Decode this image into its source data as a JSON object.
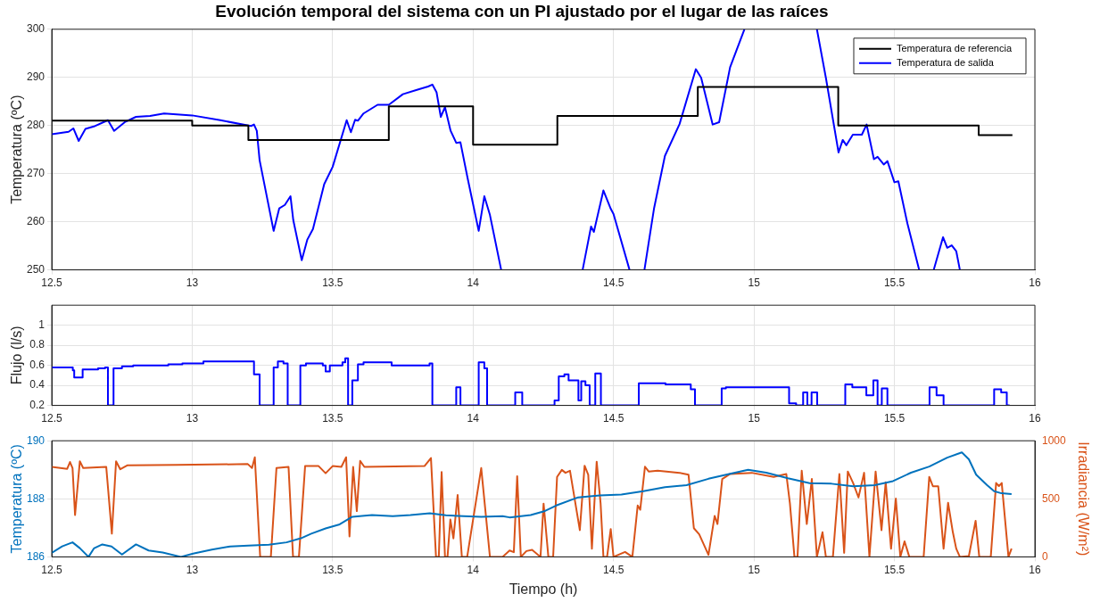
{
  "chart_data": [
    {
      "type": "line",
      "title": "Evolución temporal del sistema con un PI ajustado por el lugar de las raíces",
      "ylabel": "Temperatura (ºC)",
      "xlim": [
        12.5,
        16
      ],
      "xticks": [
        12.5,
        13,
        13.5,
        14,
        14.5,
        15,
        15.5,
        16
      ],
      "ylim": [
        250,
        300
      ],
      "yticks": [
        250,
        260,
        270,
        280,
        290,
        300
      ],
      "grid": true,
      "legend": "top right",
      "series": [
        {
          "name": "Temperatura de referencia",
          "type": "step",
          "color": "#000000",
          "x": [
            12.5,
            13,
            13.2,
            13.7,
            14,
            14.3,
            14.8,
            15.3,
            15.8,
            15.92
          ],
          "values": [
            281,
            280,
            277,
            284,
            276,
            282,
            288,
            280,
            278,
            278
          ]
        },
        {
          "name": "Temperatura de salida",
          "type": "line",
          "color": "#0000ff",
          "x": [
            12.5,
            12.56,
            12.577,
            12.596,
            12.62,
            12.65,
            12.7,
            12.722,
            12.76,
            12.8,
            12.85,
            12.9,
            13.0,
            13.1,
            13.2,
            13.21,
            13.22,
            13.23,
            13.24,
            13.29,
            13.31,
            13.33,
            13.35,
            13.36,
            13.39,
            13.41,
            13.43,
            13.47,
            13.5,
            13.55,
            13.565,
            13.58,
            13.59,
            13.61,
            13.66,
            13.7,
            13.75,
            13.8,
            13.84,
            13.855,
            13.87,
            13.885,
            13.9,
            13.92,
            13.94,
            13.955,
            13.98,
            14.02,
            14.04,
            14.06,
            14.1,
            14.25,
            14.39,
            14.42,
            14.43,
            14.464,
            14.49,
            14.5,
            14.557,
            14.58,
            14.61,
            14.644,
            14.683,
            14.735,
            14.793,
            14.812,
            14.853,
            14.876,
            14.915,
            14.966,
            15.1,
            15.224,
            15.256,
            15.301,
            15.316,
            15.329,
            15.352,
            15.384,
            15.401,
            15.427,
            15.44,
            15.462,
            15.475,
            15.5,
            15.514,
            15.546,
            15.588,
            15.61,
            15.64,
            15.673,
            15.688,
            15.704,
            15.72,
            15.733
          ],
          "values": [
            278.2,
            278.7,
            279.4,
            276.8,
            279.3,
            279.8,
            281.1,
            278.9,
            280.7,
            281.8,
            282.0,
            282.5,
            282.1,
            281.1,
            280.0,
            279.9,
            280.2,
            278.9,
            272.8,
            258.1,
            262.8,
            263.5,
            265.3,
            260.3,
            252.0,
            256.3,
            258.5,
            267.8,
            271.4,
            281.1,
            278.6,
            281.2,
            281.0,
            282.5,
            284.3,
            284.3,
            286.5,
            287.4,
            288.1,
            288.5,
            286.9,
            281.8,
            283.8,
            278.9,
            276.4,
            276.5,
            269.2,
            258.1,
            265.3,
            261.4,
            250,
            null,
            250,
            259.0,
            257.9,
            266.5,
            262.7,
            261.6,
            250,
            null,
            250,
            262.7,
            273.7,
            280.3,
            291.7,
            289.9,
            280.2,
            280.7,
            292.1,
            300,
            null,
            300,
            289.9,
            274.4,
            277.0,
            275.9,
            278.1,
            278.1,
            280.2,
            273.0,
            273.5,
            271.9,
            272.6,
            268.2,
            268.4,
            259.7,
            250,
            null,
            250,
            256.8,
            254.6,
            255.1,
            253.9,
            250
          ]
        }
      ]
    },
    {
      "type": "step",
      "ylabel": "Flujo (l/s)",
      "xlim": [
        12.5,
        16
      ],
      "xticks": [
        12.5,
        13,
        13.5,
        14,
        14.5,
        15,
        15.5,
        16
      ],
      "ylim": [
        0.2,
        1.2
      ],
      "yticks": [
        0.2,
        0.4,
        0.6,
        0.8,
        1
      ],
      "grid": true,
      "series": [
        {
          "color": "#0000ff",
          "x": [
            12.5,
            12.575,
            12.58,
            12.61,
            12.665,
            12.69,
            12.7,
            12.72,
            12.75,
            12.79,
            12.915,
            12.965,
            13.04,
            13.22,
            13.24,
            13.29,
            13.305,
            13.325,
            13.34,
            13.385,
            13.405,
            13.465,
            13.475,
            13.49,
            13.535,
            13.545,
            13.555,
            13.57,
            13.59,
            13.61,
            13.71,
            13.845,
            13.855,
            13.94,
            13.955,
            14.02,
            14.04,
            14.05,
            14.15,
            14.175,
            14.29,
            14.305,
            14.325,
            14.34,
            14.375,
            14.385,
            14.4,
            14.415,
            14.435,
            14.455,
            14.59,
            14.685,
            14.775,
            14.79,
            14.885,
            14.9,
            15.125,
            15.15,
            15.175,
            15.19,
            15.205,
            15.225,
            15.325,
            15.35,
            15.4,
            15.425,
            15.44,
            15.455,
            15.475,
            15.625,
            15.65,
            15.675,
            15.855,
            15.88,
            15.9,
            15.91
          ],
          "values": [
            0.58,
            0.55,
            0.48,
            0.56,
            0.57,
            0.58,
            0.2,
            0.57,
            0.59,
            0.6,
            0.61,
            0.62,
            0.64,
            0.51,
            0.2,
            0.58,
            0.64,
            0.62,
            0.2,
            0.6,
            0.62,
            0.6,
            0.54,
            0.6,
            0.63,
            0.67,
            0.2,
            0.45,
            0.61,
            0.63,
            0.6,
            0.62,
            0.2,
            0.38,
            0.2,
            0.63,
            0.57,
            0.2,
            0.33,
            0.2,
            0.25,
            0.49,
            0.51,
            0.45,
            0.25,
            0.44,
            0.4,
            0.2,
            0.52,
            0.2,
            0.42,
            0.41,
            0.36,
            0.2,
            0.37,
            0.38,
            0.22,
            0.2,
            0.33,
            0.2,
            0.33,
            0.2,
            0.41,
            0.38,
            0.3,
            0.45,
            0.2,
            0.37,
            0.2,
            0.38,
            0.3,
            0.2,
            0.36,
            0.33,
            0.2,
            0.2
          ]
        }
      ]
    },
    {
      "type": "line",
      "xlabel": "Tiempo (h)",
      "ylabel": "Temperatura (ºC)",
      "y2label": "Irradiancia (W/m²)",
      "xlim": [
        12.5,
        16
      ],
      "xticks": [
        12.5,
        13,
        13.5,
        14,
        14.5,
        15,
        15.5,
        16
      ],
      "ylim": [
        186,
        190
      ],
      "yticks": [
        186,
        188,
        190
      ],
      "y2lim": [
        0,
        1000
      ],
      "y2ticks": [
        0,
        500,
        1000
      ],
      "grid": true,
      "series": [
        {
          "color": "#0072bd",
          "x": [
            12.5,
            12.537,
            12.574,
            12.6,
            12.631,
            12.65,
            12.68,
            12.713,
            12.75,
            12.8,
            12.845,
            12.895,
            12.96,
            13.003,
            13.07,
            13.135,
            13.2,
            13.273,
            13.336,
            13.387,
            13.424,
            13.475,
            13.525,
            13.57,
            13.64,
            13.714,
            13.777,
            13.846,
            13.903,
            13.966,
            14.029,
            14.105,
            14.13,
            14.205,
            14.256,
            14.296,
            14.374,
            14.451,
            14.528,
            14.606,
            14.683,
            14.76,
            14.838,
            14.915,
            14.979,
            15.044,
            15.121,
            15.198,
            15.276,
            15.353,
            15.43,
            15.495,
            15.559,
            15.624,
            15.688,
            15.74,
            15.765,
            15.791,
            15.83,
            15.855,
            15.881,
            15.917
          ],
          "values": [
            186.14,
            186.36,
            186.5,
            186.3,
            186,
            186.29,
            186.43,
            186.36,
            186.08,
            186.43,
            186.22,
            186.15,
            186,
            186.11,
            186.25,
            186.36,
            186.39,
            186.42,
            186.5,
            186.64,
            186.8,
            186.98,
            187.12,
            187.38,
            187.44,
            187.4,
            187.44,
            187.5,
            187.43,
            187.4,
            187.38,
            187.4,
            187.36,
            187.44,
            187.58,
            187.77,
            188.05,
            188.12,
            188.15,
            188.26,
            188.4,
            188.47,
            188.69,
            188.86,
            189.0,
            188.9,
            188.71,
            188.54,
            188.52,
            188.43,
            188.47,
            188.61,
            188.9,
            189.11,
            189.42,
            189.6,
            189.36,
            188.83,
            188.47,
            188.26,
            188.19,
            188.16
          ]
        },
        {
          "color": "#d95319",
          "axis": "y2",
          "x": [
            12.5,
            12.555,
            12.565,
            12.574,
            12.583,
            12.6,
            12.612,
            12.694,
            12.714,
            12.729,
            12.744,
            12.77,
            12.946,
            13.198,
            13.213,
            13.223,
            13.242,
            13.28,
            13.3,
            13.343,
            13.359,
            13.38,
            13.402,
            13.45,
            13.475,
            13.5,
            13.531,
            13.548,
            13.56,
            13.573,
            13.586,
            13.598,
            13.613,
            13.827,
            13.85,
            13.868,
            13.878,
            13.888,
            13.9,
            13.909,
            13.919,
            13.93,
            13.945,
            13.96,
            13.979,
            14.029,
            14.06,
            14.105,
            14.13,
            14.145,
            14.157,
            14.17,
            14.19,
            14.21,
            14.24,
            14.251,
            14.268,
            14.285,
            14.299,
            14.316,
            14.329,
            14.345,
            14.38,
            14.397,
            14.41,
            14.423,
            14.44,
            14.454,
            14.464,
            14.477,
            14.49,
            14.5,
            14.541,
            14.567,
            14.586,
            14.595,
            14.612,
            14.625,
            14.657,
            14.735,
            14.767,
            14.786,
            14.805,
            14.838,
            14.86,
            14.87,
            14.887,
            14.915,
            14.992,
            15.07,
            15.115,
            15.128,
            15.144,
            15.155,
            15.17,
            15.188,
            15.206,
            15.224,
            15.244,
            15.256,
            15.281,
            15.304,
            15.321,
            15.334,
            15.353,
            15.372,
            15.392,
            15.411,
            15.433,
            15.454,
            15.469,
            15.488,
            15.505,
            15.521,
            15.536,
            15.553,
            15.604,
            15.624,
            15.637,
            15.656,
            15.675,
            15.691,
            15.708,
            15.72,
            15.733,
            15.765,
            15.789,
            15.802,
            15.843,
            15.862,
            15.872,
            15.882,
            15.906,
            15.917
          ],
          "values": [
            775,
            758,
            817,
            765,
            360,
            823,
            765,
            775,
            200,
            823,
            754,
            789,
            792,
            799,
            765,
            858,
            0,
            0,
            765,
            775,
            0,
            0,
            782,
            782,
            720,
            782,
            775,
            858,
            176,
            775,
            394,
            827,
            775,
            782,
            851,
            0,
            0,
            730,
            0,
            0,
            322,
            159,
            533,
            0,
            0,
            765,
            0,
            0,
            55,
            40,
            695,
            0,
            50,
            60,
            0,
            459,
            0,
            0,
            689,
            749,
            724,
            742,
            230,
            785,
            707,
            71,
            820,
            459,
            0,
            0,
            240,
            0,
            42,
            0,
            442,
            406,
            777,
            735,
            742,
            724,
            707,
            247,
            194,
            18,
            353,
            283,
            671,
            714,
            724,
            689,
            714,
            459,
            0,
            0,
            742,
            283,
            671,
            0,
            212,
            0,
            0,
            714,
            35,
            735,
            636,
            512,
            724,
            0,
            735,
            230,
            643,
            71,
            502,
            0,
            134,
            0,
            0,
            689,
            608,
            608,
            71,
            466,
            212,
            71,
            0,
            7,
            311,
            0,
            0,
            636,
            610,
            636,
            0,
            71
          ]
        }
      ]
    }
  ]
}
